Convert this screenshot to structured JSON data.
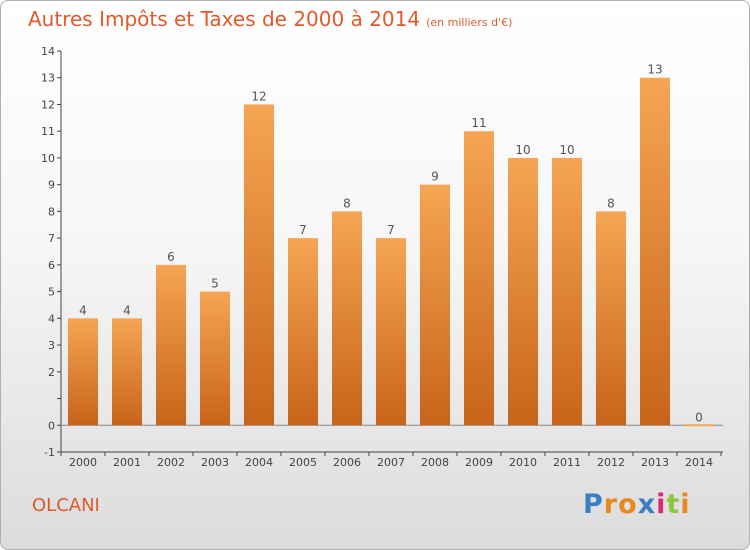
{
  "header": {
    "title": "Autres Impôts et Taxes de 2000 à 2014",
    "unit": "(en milliers d'€)"
  },
  "footer": {
    "commune": "OLCANI",
    "logo": "Proxiti",
    "logo_colors": [
      "#3a7fc4",
      "#e8891d",
      "#e8891d",
      "#3a7fc4",
      "#d62a7a",
      "#8ec63f",
      "#e8891d"
    ]
  },
  "colors": {
    "bar_light": "#f5a553",
    "bar_dark": "#c8641a",
    "text_accent": "#e05a2a"
  },
  "chart_data": {
    "type": "bar",
    "title": "Autres Impôts et Taxes de 2000 à 2014",
    "subtitle": "(en milliers d'€)",
    "categories": [
      "2000",
      "2001",
      "2002",
      "2003",
      "2004",
      "2005",
      "2006",
      "2007",
      "2008",
      "2009",
      "2010",
      "2011",
      "2012",
      "2013",
      "2014"
    ],
    "values": [
      4,
      4,
      6,
      5,
      12,
      7,
      8,
      7,
      9,
      11,
      10,
      10,
      8,
      13,
      0
    ],
    "ylim": [
      -1,
      14
    ],
    "yticks": [
      -1,
      0,
      1,
      2,
      3,
      4,
      5,
      6,
      7,
      8,
      9,
      10,
      11,
      12,
      13,
      14
    ],
    "ytick_labels": [
      "-1",
      "0",
      "",
      "2",
      "3",
      "4",
      "5",
      "6",
      "7",
      "8",
      "9",
      "10",
      "11",
      "12",
      "13",
      "14"
    ],
    "grid": false,
    "data_labels": true
  }
}
